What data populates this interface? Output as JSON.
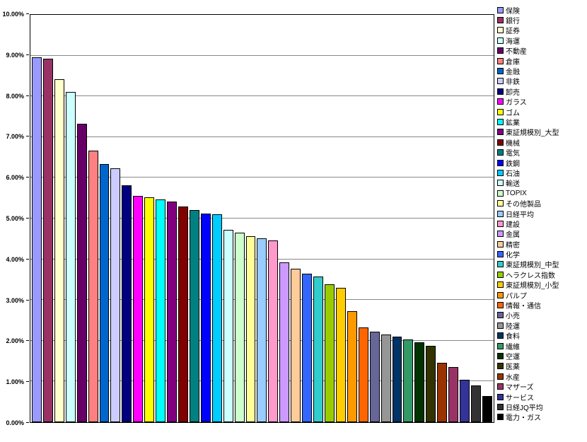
{
  "chart_data": {
    "type": "bar",
    "title": "",
    "xlabel": "",
    "ylabel": "",
    "ylim": [
      0,
      10
    ],
    "grid": true,
    "legend_position": "right",
    "yticks": [
      "0.00%",
      "1.00%",
      "2.00%",
      "3.00%",
      "4.00%",
      "5.00%",
      "6.00%",
      "7.00%",
      "8.00%",
      "9.00%",
      "10.00%"
    ],
    "series": [
      {
        "name": "保険",
        "value": 8.95,
        "color": "#9999FF"
      },
      {
        "name": "銀行",
        "value": 8.93,
        "color": "#993366"
      },
      {
        "name": "証券",
        "value": 8.42,
        "color": "#FFFFCC"
      },
      {
        "name": "海運",
        "value": 8.1,
        "color": "#CCFFFF"
      },
      {
        "name": "不動産",
        "value": 7.33,
        "color": "#660066"
      },
      {
        "name": "倉庫",
        "value": 6.67,
        "color": "#FF8080"
      },
      {
        "name": "金融",
        "value": 6.33,
        "color": "#0066CC"
      },
      {
        "name": "非鉄",
        "value": 6.24,
        "color": "#CCCCFF"
      },
      {
        "name": "卸売",
        "value": 5.81,
        "color": "#000080"
      },
      {
        "name": "ガラス",
        "value": 5.56,
        "color": "#FF00FF"
      },
      {
        "name": "ゴム",
        "value": 5.52,
        "color": "#FFFF00"
      },
      {
        "name": "鉱業",
        "value": 5.47,
        "color": "#00FFFF"
      },
      {
        "name": "東証規模別_大型",
        "value": 5.42,
        "color": "#800080"
      },
      {
        "name": "機械",
        "value": 5.3,
        "color": "#800000"
      },
      {
        "name": "電気",
        "value": 5.2,
        "color": "#008080"
      },
      {
        "name": "鉄鋼",
        "value": 5.13,
        "color": "#0000FF"
      },
      {
        "name": "石油",
        "value": 5.1,
        "color": "#00CCFF"
      },
      {
        "name": "輸送",
        "value": 4.72,
        "color": "#CCFFFF"
      },
      {
        "name": "TOPIX",
        "value": 4.65,
        "color": "#CCFFCC"
      },
      {
        "name": "その他製品",
        "value": 4.57,
        "color": "#FFFF99"
      },
      {
        "name": "日経平均",
        "value": 4.51,
        "color": "#99CCFF"
      },
      {
        "name": "建設",
        "value": 4.46,
        "color": "#FF99CC"
      },
      {
        "name": "金属",
        "value": 3.92,
        "color": "#CC99FF"
      },
      {
        "name": "精密",
        "value": 3.76,
        "color": "#FFCC99"
      },
      {
        "name": "化学",
        "value": 3.65,
        "color": "#3366FF"
      },
      {
        "name": "東証規模別_中型",
        "value": 3.57,
        "color": "#33CCCC"
      },
      {
        "name": "ヘラクレス指数",
        "value": 3.38,
        "color": "#99CC00"
      },
      {
        "name": "東証規模別_小型",
        "value": 3.3,
        "color": "#FFCC00"
      },
      {
        "name": "パルプ",
        "value": 2.72,
        "color": "#FF9900"
      },
      {
        "name": "情報・通信",
        "value": 2.32,
        "color": "#FF6600"
      },
      {
        "name": "小売",
        "value": 2.23,
        "color": "#666699"
      },
      {
        "name": "陸運",
        "value": 2.16,
        "color": "#969696"
      },
      {
        "name": "食料",
        "value": 2.1,
        "color": "#003366"
      },
      {
        "name": "繊維",
        "value": 2.04,
        "color": "#339966"
      },
      {
        "name": "空運",
        "value": 1.96,
        "color": "#003300"
      },
      {
        "name": "医薬",
        "value": 1.88,
        "color": "#333300"
      },
      {
        "name": "水産",
        "value": 1.45,
        "color": "#993300"
      },
      {
        "name": "マザーズ",
        "value": 1.36,
        "color": "#993366"
      },
      {
        "name": "サービス",
        "value": 1.05,
        "color": "#333399"
      },
      {
        "name": "日経JQ平均",
        "value": 0.91,
        "color": "#333333"
      },
      {
        "name": "電力・ガス",
        "value": 0.65,
        "color": "#000000"
      }
    ]
  }
}
